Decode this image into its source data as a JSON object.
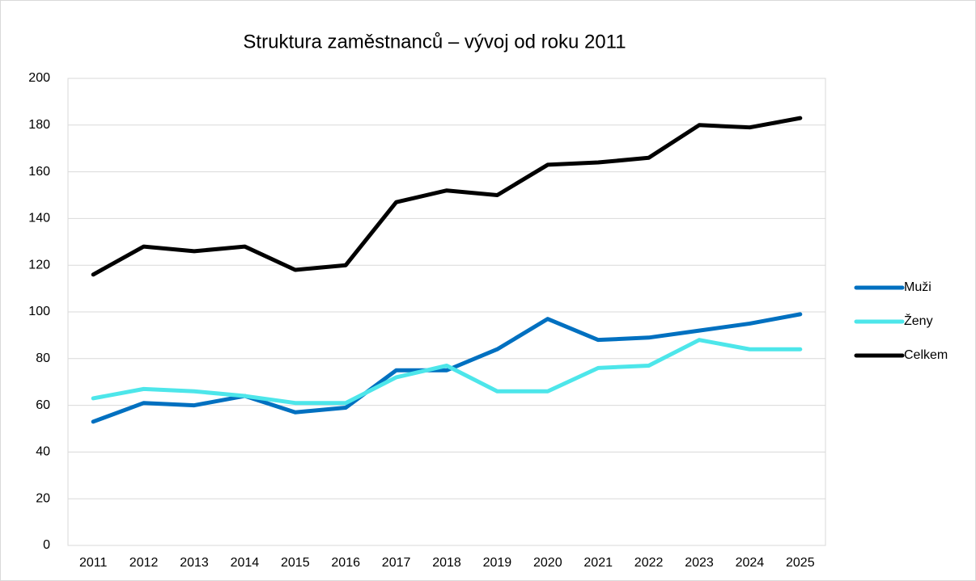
{
  "chart_data": {
    "type": "line",
    "title": "Struktura zaměstnanců – vývoj od roku 2011",
    "categories": [
      "2011",
      "2012",
      "2013",
      "2014",
      "2015",
      "2016",
      "2017",
      "2018",
      "2019",
      "2020",
      "2021",
      "2022",
      "2023",
      "2024",
      "2025"
    ],
    "series": [
      {
        "name": "Muži",
        "color": "#0070c0",
        "values": [
          53,
          61,
          60,
          64,
          57,
          59,
          75,
          75,
          84,
          97,
          88,
          89,
          92,
          95,
          99
        ]
      },
      {
        "name": "Ženy",
        "color": "#4de6ea",
        "values": [
          63,
          67,
          66,
          64,
          61,
          61,
          72,
          77,
          66,
          66,
          76,
          77,
          88,
          84,
          84
        ]
      },
      {
        "name": "Celkem",
        "color": "#000000",
        "values": [
          116,
          128,
          126,
          128,
          118,
          120,
          147,
          152,
          150,
          163,
          164,
          166,
          180,
          179,
          183
        ]
      }
    ],
    "ylim": [
      0,
      200
    ],
    "yticks": [
      0,
      20,
      40,
      60,
      80,
      100,
      120,
      140,
      160,
      180,
      200
    ],
    "grid": true,
    "legend": "right"
  }
}
